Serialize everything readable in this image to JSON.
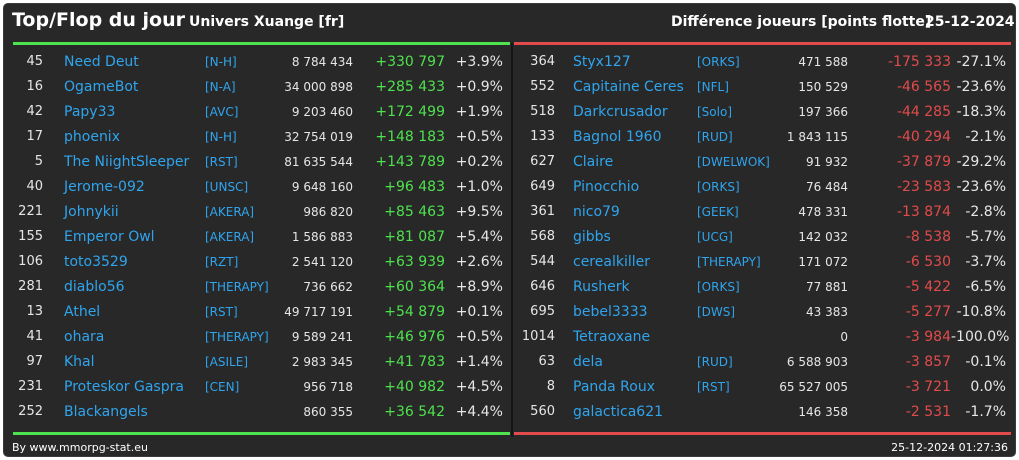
{
  "header": {
    "title": "Top/Flop du jour",
    "universe": "Univers Xuange [fr]",
    "subtitle": "Différence joueurs [points flotte]",
    "date": "25-12-2024"
  },
  "colors": {
    "positive": "#4ee24e",
    "negative": "#e24b4b",
    "link": "#2fa5ee",
    "background": "#282828"
  },
  "top": [
    {
      "rank": "45",
      "name": "Need Deut",
      "alliance": "[N-H]",
      "points": "8 784 434",
      "delta": "+330 797",
      "pct": "+3.9%"
    },
    {
      "rank": "16",
      "name": "OgameBot",
      "alliance": "[N-A]",
      "points": "34 000 898",
      "delta": "+285 433",
      "pct": "+0.9%"
    },
    {
      "rank": "42",
      "name": "Papy33",
      "alliance": "[AVC]",
      "points": "9 203 460",
      "delta": "+172 499",
      "pct": "+1.9%"
    },
    {
      "rank": "17",
      "name": "phoenix",
      "alliance": "[N-H]",
      "points": "32 754 019",
      "delta": "+148 183",
      "pct": "+0.5%"
    },
    {
      "rank": "5",
      "name": "The NiightSleeper",
      "alliance": "[RST]",
      "points": "81 635 544",
      "delta": "+143 789",
      "pct": "+0.2%"
    },
    {
      "rank": "40",
      "name": "Jerome-092",
      "alliance": "[UNSC]",
      "points": "9 648 160",
      "delta": "+96 483",
      "pct": "+1.0%"
    },
    {
      "rank": "221",
      "name": "Johnykii",
      "alliance": "[AKERA]",
      "points": "986 820",
      "delta": "+85 463",
      "pct": "+9.5%"
    },
    {
      "rank": "155",
      "name": "Emperor Owl",
      "alliance": "[AKERA]",
      "points": "1 586 883",
      "delta": "+81 087",
      "pct": "+5.4%"
    },
    {
      "rank": "106",
      "name": "toto3529",
      "alliance": "[RZT]",
      "points": "2 541 120",
      "delta": "+63 939",
      "pct": "+2.6%"
    },
    {
      "rank": "281",
      "name": "diablo56",
      "alliance": "[THERAPY]",
      "points": "736 662",
      "delta": "+60 364",
      "pct": "+8.9%"
    },
    {
      "rank": "13",
      "name": "Athel",
      "alliance": "[RST]",
      "points": "49 717 191",
      "delta": "+54 879",
      "pct": "+0.1%"
    },
    {
      "rank": "41",
      "name": "ohara",
      "alliance": "[THERAPY]",
      "points": "9 589 241",
      "delta": "+46 976",
      "pct": "+0.5%"
    },
    {
      "rank": "97",
      "name": "Khal",
      "alliance": "[ASILE]",
      "points": "2 983 345",
      "delta": "+41 783",
      "pct": "+1.4%"
    },
    {
      "rank": "231",
      "name": "Proteskor Gaspra",
      "alliance": "[CEN]",
      "points": "956 718",
      "delta": "+40 982",
      "pct": "+4.5%"
    },
    {
      "rank": "252",
      "name": "Blackangels",
      "alliance": "",
      "points": "860 355",
      "delta": "+36 542",
      "pct": "+4.4%"
    }
  ],
  "flop": [
    {
      "rank": "364",
      "name": "Styx127",
      "alliance": "[ORKS]",
      "points": "471 588",
      "delta": "-175 333",
      "pct": "-27.1%"
    },
    {
      "rank": "552",
      "name": "Capitaine Ceres",
      "alliance": "[NFL]",
      "points": "150 529",
      "delta": "-46 565",
      "pct": "-23.6%"
    },
    {
      "rank": "518",
      "name": "Darkcrusador",
      "alliance": "[Solo]",
      "points": "197 366",
      "delta": "-44 285",
      "pct": "-18.3%"
    },
    {
      "rank": "133",
      "name": "Bagnol 1960",
      "alliance": "[RUD]",
      "points": "1 843 115",
      "delta": "-40 294",
      "pct": "-2.1%"
    },
    {
      "rank": "627",
      "name": "Claire",
      "alliance": "[DWELWOK]",
      "points": "91 932",
      "delta": "-37 879",
      "pct": "-29.2%"
    },
    {
      "rank": "649",
      "name": "Pinocchio",
      "alliance": "[ORKS]",
      "points": "76 484",
      "delta": "-23 583",
      "pct": "-23.6%"
    },
    {
      "rank": "361",
      "name": "nico79",
      "alliance": "[GEEK]",
      "points": "478 331",
      "delta": "-13 874",
      "pct": "-2.8%"
    },
    {
      "rank": "568",
      "name": "gibbs",
      "alliance": "[UCG]",
      "points": "142 032",
      "delta": "-8 538",
      "pct": "-5.7%"
    },
    {
      "rank": "544",
      "name": "cerealkiller",
      "alliance": "[THERAPY]",
      "points": "171 072",
      "delta": "-6 530",
      "pct": "-3.7%"
    },
    {
      "rank": "646",
      "name": "Rusherk",
      "alliance": "[ORKS]",
      "points": "77 881",
      "delta": "-5 422",
      "pct": "-6.5%"
    },
    {
      "rank": "695",
      "name": "bebel3333",
      "alliance": "[DWS]",
      "points": "43 383",
      "delta": "-5 277",
      "pct": "-10.8%"
    },
    {
      "rank": "1014",
      "name": "Tetraoxane",
      "alliance": "",
      "points": "0",
      "delta": "-3 984",
      "pct": "-100.0%"
    },
    {
      "rank": "63",
      "name": "dela",
      "alliance": "[RUD]",
      "points": "6 588 903",
      "delta": "-3 857",
      "pct": "-0.1%"
    },
    {
      "rank": "8",
      "name": "Panda Roux",
      "alliance": "[RST]",
      "points": "65 527 005",
      "delta": "-3 721",
      "pct": "0.0%"
    },
    {
      "rank": "560",
      "name": "galactica621",
      "alliance": "",
      "points": "146 358",
      "delta": "-2 531",
      "pct": "-1.7%"
    }
  ],
  "footer": {
    "credit": "By www.mmorpg-stat.eu",
    "timestamp": "25-12-2024 01:27:36"
  }
}
